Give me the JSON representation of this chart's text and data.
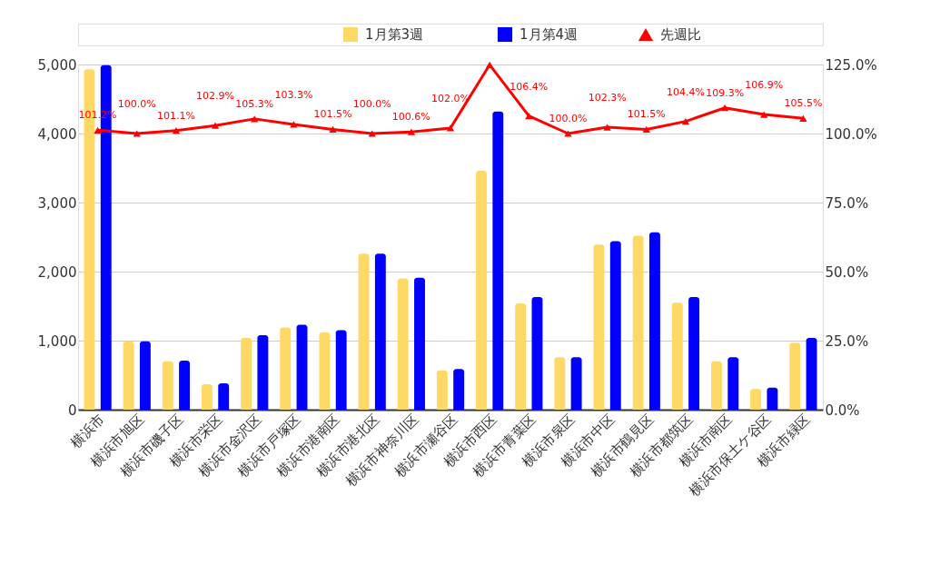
{
  "chart_data": {
    "type": "bar",
    "categories": [
      "横浜市",
      "横浜市旭区",
      "横浜市磯子区",
      "横浜市栄区",
      "横浜市金沢区",
      "横浜市戸塚区",
      "横浜市港南区",
      "横浜市港北区",
      "横浜市神奈川区",
      "横浜市瀬谷区",
      "横浜市西区",
      "横浜市青葉区",
      "横浜市泉区",
      "横浜市中区",
      "横浜市鶴見区",
      "横浜市都筑区",
      "横浜市南区",
      "横浜市保土ケ谷区",
      "横浜市緑区"
    ],
    "series": [
      {
        "name": "1月第3週",
        "color": "#ffd966",
        "values": [
          4930,
          990,
          700,
          370,
          1040,
          1190,
          1120,
          2260,
          1900,
          570,
          3460,
          1540,
          760,
          2390,
          2520,
          1550,
          700,
          300,
          970
        ]
      },
      {
        "name": "1月第4週",
        "color": "#0000ff",
        "values": [
          4990,
          990,
          710,
          380,
          1080,
          1230,
          1150,
          2260,
          1910,
          590,
          4320,
          1630,
          760,
          2440,
          2570,
          1630,
          760,
          320,
          1040
        ]
      },
      {
        "name": "先週比",
        "type": "line",
        "axis": "y2",
        "color": "#ff0000",
        "marker": "triangle",
        "values": [
          101.2,
          100.0,
          101.1,
          102.9,
          105.3,
          103.3,
          101.5,
          100.0,
          100.6,
          102.0,
          124.9,
          106.4,
          100.0,
          102.3,
          101.5,
          104.4,
          109.3,
          106.9,
          105.5
        ],
        "value_labels": [
          "101.2%",
          "100.0%",
          "101.1%",
          "102.9%",
          "105.3%",
          "103.3%",
          "101.5%",
          "100.0%",
          "100.6%",
          "102.0%",
          null,
          "106.4%",
          "100.0%",
          "102.3%",
          "101.5%",
          "104.4%",
          "109.3%",
          "106.9%",
          "105.5%"
        ]
      }
    ],
    "ylim": [
      0,
      5000
    ],
    "yticks": [
      0,
      {
        "value": 1000,
        "label": "1,000"
      },
      {
        "value": 2000,
        "label": "2,000"
      },
      {
        "value": 3000,
        "label": "3,000"
      },
      {
        "value": 4000,
        "label": "4,000"
      },
      {
        "value": 5000,
        "label": "5,000"
      }
    ],
    "y2lim": [
      0,
      125
    ],
    "y2ticks": [
      {
        "value": 0,
        "label": "0.0%"
      },
      {
        "value": 25,
        "label": "25.0%"
      },
      {
        "value": 50,
        "label": "50.0%"
      },
      {
        "value": 75,
        "label": "75.0%"
      },
      {
        "value": 100,
        "label": "100.0%"
      },
      {
        "value": 125,
        "label": "125.0%"
      }
    ],
    "grid": "y",
    "legend": "top"
  }
}
